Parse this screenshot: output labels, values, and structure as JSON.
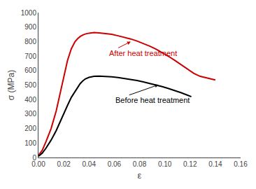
{
  "chart_data": {
    "type": "line",
    "xlabel": "ε",
    "ylabel": "σ (MPa)",
    "xlim": [
      0.0,
      0.16
    ],
    "ylim": [
      0,
      1000
    ],
    "xticks": [
      {
        "value": 0.0,
        "label": "0.00"
      },
      {
        "value": 0.02,
        "label": "0.02"
      },
      {
        "value": 0.04,
        "label": "0.04"
      },
      {
        "value": 0.06,
        "label": "0.06"
      },
      {
        "value": 0.08,
        "label": "0.08"
      },
      {
        "value": 0.1,
        "label": "0.10"
      },
      {
        "value": 0.12,
        "label": "0.12"
      },
      {
        "value": 0.14,
        "label": "0.14"
      },
      {
        "value": 0.16,
        "label": "0.16"
      }
    ],
    "yticks": [
      0,
      100,
      200,
      300,
      400,
      500,
      600,
      700,
      800,
      900,
      1000
    ],
    "grid": false,
    "series": [
      {
        "color": "#cc0000",
        "x": [
          0.0,
          0.003,
          0.006,
          0.01,
          0.014,
          0.017,
          0.02,
          0.023,
          0.026,
          0.029,
          0.031,
          0.033,
          0.035,
          0.037,
          0.04,
          0.044,
          0.048,
          0.053,
          0.058,
          0.063,
          0.068,
          0.073,
          0.078,
          0.083,
          0.088,
          0.093,
          0.098,
          0.103,
          0.108,
          0.113,
          0.118,
          0.123,
          0.128,
          0.133,
          0.138,
          0.14
        ],
        "values": [
          15,
          50,
          110,
          200,
          320,
          440,
          560,
          670,
          750,
          800,
          820,
          835,
          845,
          852,
          858,
          862,
          860,
          856,
          850,
          840,
          830,
          818,
          804,
          788,
          769,
          748,
          724,
          698,
          670,
          640,
          608,
          580,
          560,
          548,
          538,
          535
        ]
      },
      {
        "color": "#000000",
        "x": [
          0.0,
          0.003,
          0.006,
          0.01,
          0.014,
          0.017,
          0.02,
          0.023,
          0.026,
          0.029,
          0.031,
          0.033,
          0.035,
          0.037,
          0.04,
          0.044,
          0.048,
          0.053,
          0.058,
          0.063,
          0.068,
          0.073,
          0.078,
          0.083,
          0.088,
          0.093,
          0.098,
          0.103,
          0.108,
          0.113,
          0.118,
          0.121
        ],
        "values": [
          8,
          30,
          65,
          120,
          185,
          245,
          300,
          360,
          415,
          455,
          485,
          510,
          528,
          542,
          553,
          560,
          562,
          560,
          557,
          552,
          546,
          539,
          531,
          522,
          512,
          501,
          489,
          476,
          462,
          447,
          430,
          420
        ]
      }
    ],
    "annotations": [
      {
        "text": "After heat treatment",
        "x": 0.073,
        "y": 800,
        "text_x": 0.055,
        "text_y": 720,
        "color": "#cc0000"
      },
      {
        "text": "Before heat treatment",
        "x": 0.095,
        "y": 502,
        "text_x": 0.06,
        "text_y": 395,
        "color": "#000000"
      }
    ]
  }
}
